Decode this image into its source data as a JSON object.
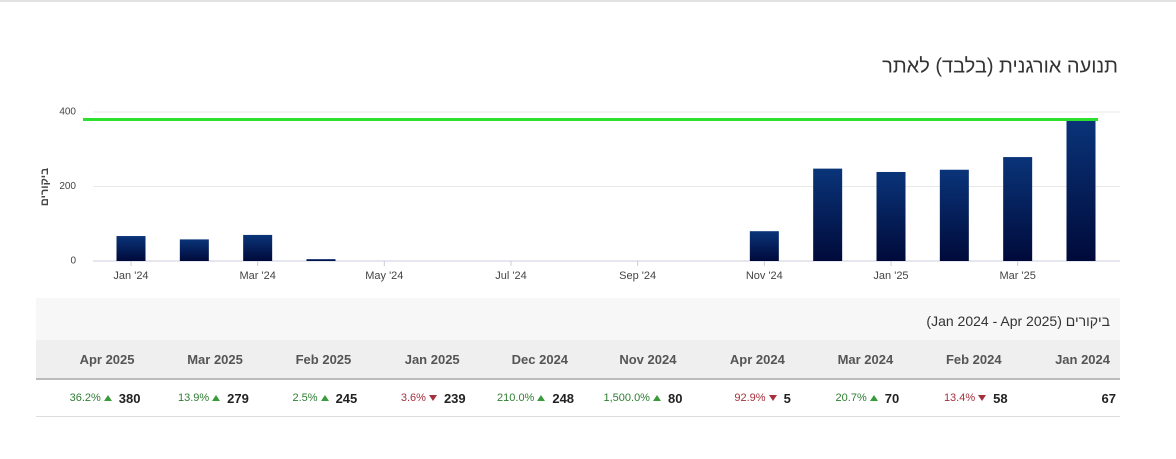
{
  "chart_data": {
    "type": "bar",
    "title": "תנועה אורגנית (בלבד) לאתר",
    "y_label": "ביקורים",
    "categories": [
      "Jan '24",
      null,
      "Mar '24",
      null,
      "May '24",
      null,
      "Jul '24",
      null,
      "Sep '24",
      null,
      "Nov '24",
      null,
      "Jan '25",
      null,
      "Mar '25",
      null
    ],
    "values": [
      67,
      58,
      70,
      5,
      null,
      null,
      null,
      null,
      null,
      null,
      80,
      248,
      239,
      245,
      279,
      380
    ],
    "color": "#0a3479",
    "ylim": [
      0,
      400
    ],
    "yticks": [
      0,
      200,
      400
    ],
    "grid": true,
    "reference_line": {
      "value": 380,
      "color": "#2ee02e"
    }
  },
  "table": {
    "title": "ביקורים (Jan 2024 - Apr 2025)",
    "columns": [
      {
        "header": "Jan 2024",
        "value": 67
      },
      {
        "header": "Feb 2024",
        "value": 58,
        "change": "13.4%",
        "direction": "down"
      },
      {
        "header": "Mar 2024",
        "value": 70,
        "change": "20.7%",
        "direction": "up"
      },
      {
        "header": "Apr 2024",
        "value": 5,
        "change": "92.9%",
        "direction": "down"
      },
      {
        "header": "Nov 2024",
        "value": 80,
        "change": "1,500.0%",
        "direction": "up"
      },
      {
        "header": "Dec 2024",
        "value": 248,
        "change": "210.0%",
        "direction": "up"
      },
      {
        "header": "Jan 2025",
        "value": 239,
        "change": "3.6%",
        "direction": "down"
      },
      {
        "header": "Feb 2025",
        "value": 245,
        "change": "2.5%",
        "direction": "up"
      },
      {
        "header": "Mar 2025",
        "value": 279,
        "change": "13.9%",
        "direction": "up"
      },
      {
        "header": "Apr 2025",
        "value": 380,
        "change": "36.2%",
        "direction": "up"
      }
    ]
  }
}
